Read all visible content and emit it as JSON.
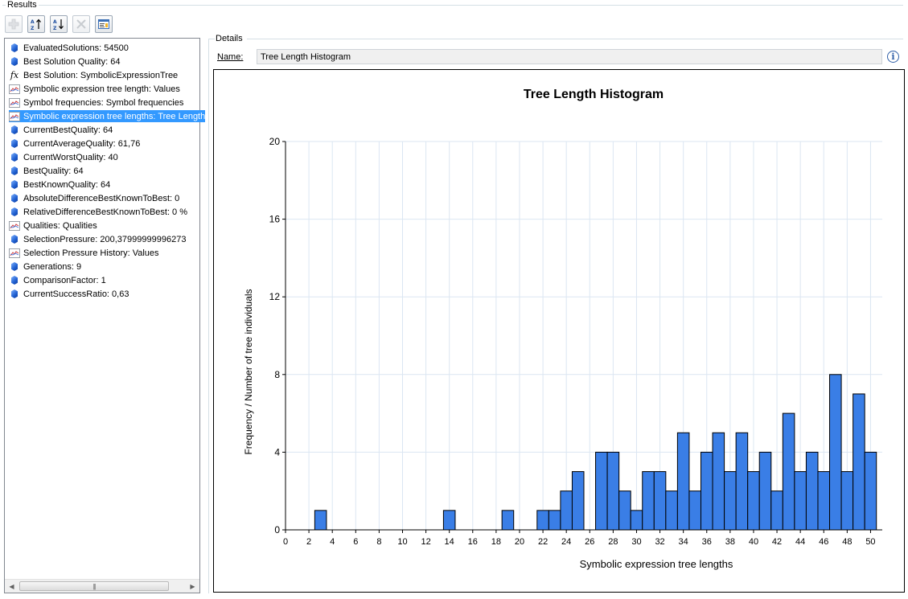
{
  "results": {
    "label": "Results",
    "items": [
      {
        "icon": "gem",
        "text": "EvaluatedSolutions: 54500"
      },
      {
        "icon": "gem",
        "text": "Best Solution Quality: 64"
      },
      {
        "icon": "fx",
        "text": "Best Solution: SymbolicExpressionTree"
      },
      {
        "icon": "chart",
        "text": "Symbolic expression tree length: Values"
      },
      {
        "icon": "chart",
        "text": "Symbol frequencies: Symbol frequencies"
      },
      {
        "icon": "chart",
        "text": "Symbolic expression tree lengths: Tree Length"
      },
      {
        "icon": "gem",
        "text": "CurrentBestQuality: 64"
      },
      {
        "icon": "gem",
        "text": "CurrentAverageQuality: 61,76"
      },
      {
        "icon": "gem",
        "text": "CurrentWorstQuality: 40"
      },
      {
        "icon": "gem",
        "text": "BestQuality: 64"
      },
      {
        "icon": "gem",
        "text": "BestKnownQuality: 64"
      },
      {
        "icon": "gem",
        "text": "AbsoluteDifferenceBestKnownToBest: 0"
      },
      {
        "icon": "gem",
        "text": "RelativeDifferenceBestKnownToBest: 0 %"
      },
      {
        "icon": "chart",
        "text": "Qualities: Qualities"
      },
      {
        "icon": "gem",
        "text": "SelectionPressure: 200,37999999996273"
      },
      {
        "icon": "chart",
        "text": "Selection Pressure History: Values"
      },
      {
        "icon": "gem",
        "text": "Generations: 9"
      },
      {
        "icon": "gem",
        "text": "ComparisonFactor: 1"
      },
      {
        "icon": "gem",
        "text": "CurrentSuccessRatio: 0,63"
      }
    ],
    "selected_index": 5
  },
  "details": {
    "label": "Details",
    "name_label": "Name:",
    "name_value": "Tree Length Histogram"
  },
  "colors": {
    "bar_fill": "#3a7ee6",
    "bar_stroke": "#000000",
    "grid": "#dbe6f2",
    "selection": "#3399ff"
  },
  "chart_data": {
    "type": "bar",
    "title": "Tree Length Histogram",
    "xlabel": "Symbolic expression tree lengths",
    "ylabel": "Frequency / Number of tree individuals",
    "xlim": [
      0,
      51
    ],
    "ylim": [
      0,
      20
    ],
    "xticks": [
      "0",
      "2",
      "4",
      "6",
      "8",
      "10",
      "12",
      "14",
      "16",
      "18",
      "20",
      "22",
      "24",
      "26",
      "28",
      "30",
      "32",
      "34",
      "36",
      "38",
      "40",
      "42",
      "44",
      "46",
      "48",
      "50"
    ],
    "yticks": [
      "0",
      "4",
      "8",
      "12",
      "16",
      "20"
    ],
    "grid": true,
    "bins": [
      {
        "x": 3,
        "y": 1
      },
      {
        "x": 14,
        "y": 1
      },
      {
        "x": 19,
        "y": 1
      },
      {
        "x": 22,
        "y": 1
      },
      {
        "x": 23,
        "y": 1
      },
      {
        "x": 24,
        "y": 2
      },
      {
        "x": 25,
        "y": 3
      },
      {
        "x": 27,
        "y": 4
      },
      {
        "x": 28,
        "y": 4
      },
      {
        "x": 29,
        "y": 2
      },
      {
        "x": 30,
        "y": 1
      },
      {
        "x": 31,
        "y": 3
      },
      {
        "x": 32,
        "y": 3
      },
      {
        "x": 33,
        "y": 2
      },
      {
        "x": 34,
        "y": 5
      },
      {
        "x": 35,
        "y": 2
      },
      {
        "x": 36,
        "y": 4
      },
      {
        "x": 37,
        "y": 5
      },
      {
        "x": 38,
        "y": 3
      },
      {
        "x": 39,
        "y": 5
      },
      {
        "x": 40,
        "y": 3
      },
      {
        "x": 41,
        "y": 4
      },
      {
        "x": 42,
        "y": 2
      },
      {
        "x": 43,
        "y": 6
      },
      {
        "x": 44,
        "y": 3
      },
      {
        "x": 45,
        "y": 4
      },
      {
        "x": 46,
        "y": 3
      },
      {
        "x": 47,
        "y": 8
      },
      {
        "x": 48,
        "y": 3
      },
      {
        "x": 49,
        "y": 7
      },
      {
        "x": 50,
        "y": 4
      }
    ]
  }
}
